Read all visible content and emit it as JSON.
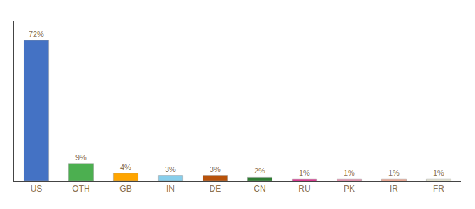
{
  "chart_data": {
    "type": "bar",
    "categories": [
      "US",
      "OTH",
      "GB",
      "IN",
      "DE",
      "CN",
      "RU",
      "PK",
      "IR",
      "FR"
    ],
    "values": [
      72,
      9,
      4,
      3,
      3,
      2,
      1,
      1,
      1,
      1
    ],
    "value_labels": [
      "72%",
      "9%",
      "4%",
      "3%",
      "3%",
      "2%",
      "1%",
      "1%",
      "1%",
      "1%"
    ],
    "colors": [
      "#4472C4",
      "#4CAF50",
      "#FFA500",
      "#87CEEB",
      "#B8520A",
      "#2E7D32",
      "#E91E8C",
      "#F48FB1",
      "#FFAB91",
      "#F5F5DC"
    ],
    "ylim": [
      0,
      82
    ],
    "data_labels": true,
    "tick_labels": "x",
    "grid": false
  }
}
